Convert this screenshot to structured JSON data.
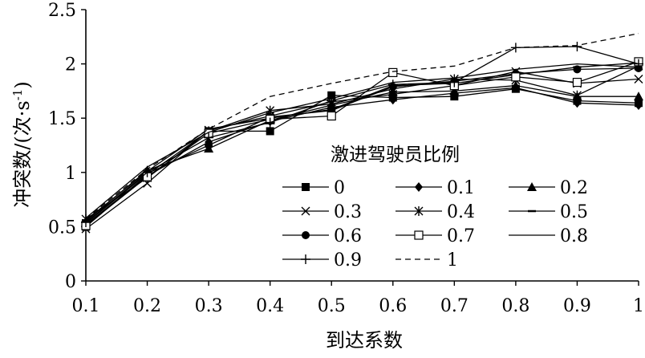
{
  "chart_data": {
    "type": "line",
    "xlabel": "到达系数",
    "ylabel_main": "冲突数/(次·s",
    "ylabel_sup": "-1",
    "ylabel_close": ")",
    "xlim": [
      0.1,
      1.0
    ],
    "ylim": [
      0,
      2.5
    ],
    "x": [
      0.1,
      0.2,
      0.3,
      0.4,
      0.5,
      0.6,
      0.7,
      0.8,
      0.9,
      1.0
    ],
    "x_tick_labels": [
      "0.1",
      "0.2",
      "0.3",
      "0.4",
      "0.5",
      "0.6",
      "0.7",
      "0.8",
      "0.9",
      "1"
    ],
    "y_ticks": [
      0,
      0.5,
      1,
      1.5,
      2,
      2.5
    ],
    "y_tick_labels": [
      "0",
      "0.5",
      "1",
      "1.5",
      "2",
      "2.5"
    ],
    "grid": false,
    "legend_title": "激进驾驶员比例",
    "legend_position": "bottom-right",
    "series": [
      {
        "name": "0",
        "marker": "square",
        "dash": "solid",
        "values": [
          0.5,
          0.98,
          1.38,
          1.38,
          1.71,
          1.69,
          1.7,
          1.77,
          1.66,
          1.64
        ]
      },
      {
        "name": "0.1",
        "marker": "diamond",
        "dash": "solid",
        "values": [
          0.52,
          0.97,
          1.28,
          1.47,
          1.6,
          1.67,
          1.73,
          1.78,
          1.64,
          1.62
        ]
      },
      {
        "name": "0.2",
        "marker": "triangle",
        "dash": "solid",
        "values": [
          0.55,
          1.02,
          1.22,
          1.48,
          1.62,
          1.74,
          1.75,
          1.8,
          1.7,
          1.7
        ]
      },
      {
        "name": "0.3",
        "marker": "x",
        "dash": "solid",
        "values": [
          0.48,
          0.9,
          1.39,
          1.52,
          1.65,
          1.72,
          1.8,
          1.93,
          1.82,
          1.86
        ]
      },
      {
        "name": "0.4",
        "marker": "star",
        "dash": "solid",
        "values": [
          0.57,
          0.95,
          1.38,
          1.57,
          1.63,
          1.77,
          1.86,
          1.85,
          1.71,
          1.98
        ]
      },
      {
        "name": "0.5",
        "marker": "dash",
        "dash": "solid",
        "values": [
          0.56,
          1.01,
          1.4,
          1.5,
          1.58,
          1.8,
          1.82,
          1.9,
          1.97,
          2.01
        ]
      },
      {
        "name": "0.6",
        "marker": "circle",
        "dash": "solid",
        "values": [
          0.53,
          0.99,
          1.25,
          1.51,
          1.57,
          1.79,
          1.84,
          1.91,
          1.95,
          1.96
        ]
      },
      {
        "name": "0.7",
        "marker": "osquare",
        "dash": "solid",
        "values": [
          0.51,
          0.96,
          1.36,
          1.49,
          1.52,
          1.92,
          1.8,
          1.88,
          1.83,
          2.02
        ]
      },
      {
        "name": "0.8",
        "marker": "none",
        "dash": "solid",
        "values": [
          0.58,
          1.05,
          1.37,
          1.55,
          1.68,
          1.83,
          1.87,
          1.95,
          2.0,
          1.97
        ]
      },
      {
        "name": "0.9",
        "marker": "plus",
        "dash": "solid",
        "values": [
          0.54,
          1.0,
          1.32,
          1.46,
          1.66,
          1.81,
          1.83,
          2.15,
          2.16,
          2.0
        ]
      },
      {
        "name": "1",
        "marker": "none",
        "dash": "dashed",
        "values": [
          0.57,
          1.03,
          1.4,
          1.7,
          1.82,
          1.93,
          1.98,
          2.15,
          2.17,
          2.28
        ]
      }
    ]
  }
}
